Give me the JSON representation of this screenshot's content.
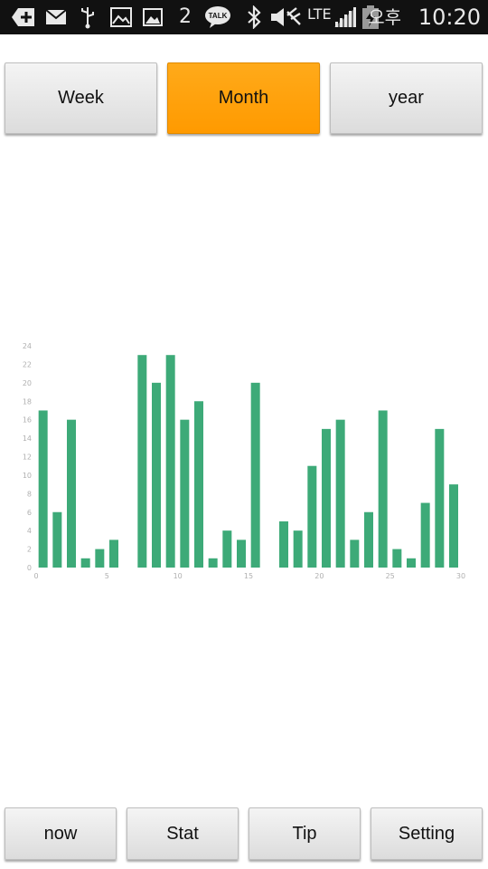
{
  "status_bar": {
    "notification_count": "2",
    "network": "LTE",
    "ampm": "오후",
    "time": "10:20",
    "icons": [
      "add-icon",
      "mail-icon",
      "usb-icon",
      "gallery-icon",
      "image-icon",
      "kakaotalk-icon",
      "bluetooth-icon",
      "mute-icon",
      "signal-icon",
      "battery-charging-icon"
    ],
    "talk_label": "TALK"
  },
  "period_tabs": {
    "week": "Week",
    "month": "Month",
    "year": "year",
    "selected": "month",
    "accent_color": "#ffa000"
  },
  "bottom_nav": {
    "now": "now",
    "stat": "Stat",
    "tip": "Tip",
    "setting": "Setting"
  },
  "chart_data": {
    "type": "bar",
    "title": "",
    "xlabel": "",
    "ylabel": "",
    "bar_color": "#3daa78",
    "xlim": [
      0,
      30
    ],
    "ylim": [
      0,
      24
    ],
    "x_ticks": [
      0,
      5,
      10,
      15,
      20,
      25,
      30
    ],
    "y_ticks": [
      0,
      2,
      4,
      6,
      8,
      10,
      12,
      14,
      16,
      18,
      20,
      22,
      24
    ],
    "grid": false,
    "x": [
      1,
      2,
      3,
      4,
      5,
      6,
      7,
      8,
      9,
      10,
      11,
      12,
      13,
      14,
      15,
      16,
      17,
      18,
      19,
      20,
      21,
      22,
      23,
      24,
      25,
      26,
      27,
      28,
      29,
      30
    ],
    "values": [
      17,
      6,
      16,
      1,
      2,
      3,
      0,
      23,
      20,
      23,
      16,
      18,
      1,
      4,
      3,
      20,
      0,
      5,
      4,
      11,
      15,
      16,
      3,
      6,
      17,
      2,
      1,
      7,
      15,
      9
    ]
  }
}
